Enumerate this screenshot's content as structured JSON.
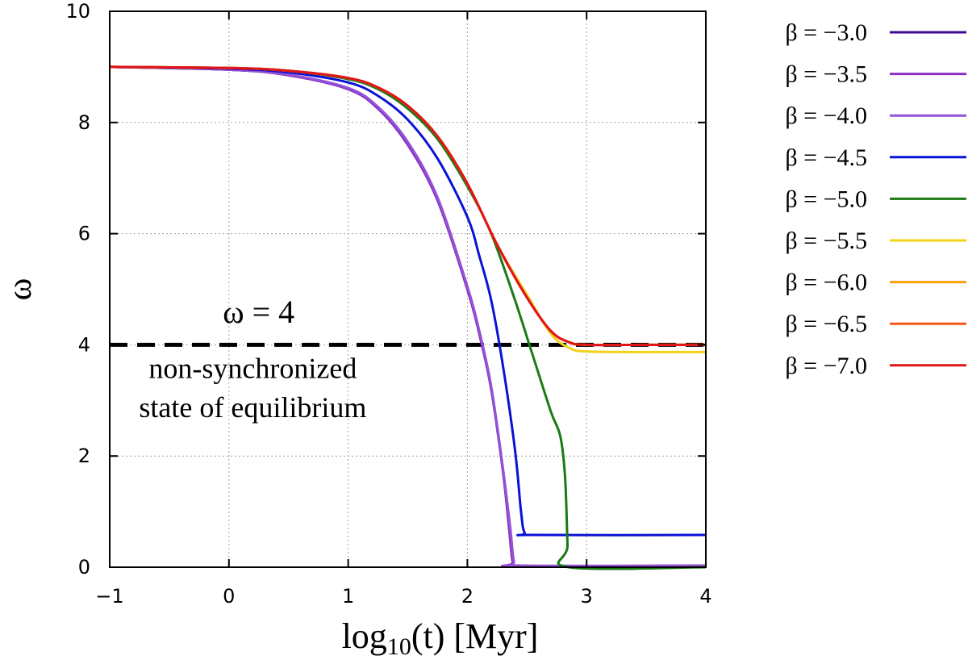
{
  "chart_data": {
    "type": "line",
    "title": "",
    "xlabel_main": "log",
    "xlabel_sub": "10",
    "xlabel_rest": "(t) [Myr]",
    "ylabel": "ω",
    "xlim": [
      -1,
      4
    ],
    "ylim": [
      0,
      10
    ],
    "xticks": [
      "−1",
      "0",
      "1",
      "2",
      "3",
      "4"
    ],
    "xtick_values": [
      -1,
      0,
      1,
      2,
      3,
      4
    ],
    "yticks": [
      "0",
      "2",
      "4",
      "6",
      "8",
      "10"
    ],
    "ytick_values": [
      0,
      2,
      4,
      6,
      8,
      10
    ],
    "grid": true,
    "legend_position": "right, outside plot",
    "reference_line": {
      "y": 4,
      "style": "dashed",
      "color": "#000000"
    },
    "annotations": [
      {
        "text": "ω = 4",
        "x": 0.25,
        "y": 4.4
      },
      {
        "text": "non-synchronized",
        "x": 0.2,
        "y": 3.4
      },
      {
        "text": "state of equilibrium",
        "x": 0.2,
        "y": 2.7
      }
    ],
    "series": [
      {
        "name": "β = −3.0",
        "color": "#3d0a91",
        "points": [
          [
            -1,
            9.0
          ],
          [
            0,
            8.95
          ],
          [
            0.5,
            8.85
          ],
          [
            1,
            8.6
          ],
          [
            1.25,
            8.25
          ],
          [
            1.5,
            7.6
          ],
          [
            1.75,
            6.6
          ],
          [
            2,
            5.0
          ],
          [
            2.1,
            4.2
          ],
          [
            2.2,
            3.2
          ],
          [
            2.3,
            1.7
          ],
          [
            2.35,
            0.7
          ],
          [
            2.38,
            0.1
          ],
          [
            2.42,
            0.02
          ],
          [
            4,
            0.02
          ]
        ]
      },
      {
        "name": "β = −3.5",
        "color": "#8a2fc6",
        "points": [
          [
            -1,
            9.0
          ],
          [
            0,
            8.95
          ],
          [
            0.5,
            8.85
          ],
          [
            1,
            8.6
          ],
          [
            1.25,
            8.25
          ],
          [
            1.5,
            7.6
          ],
          [
            1.75,
            6.6
          ],
          [
            2,
            5.0
          ],
          [
            2.1,
            4.2
          ],
          [
            2.2,
            3.2
          ],
          [
            2.3,
            1.7
          ],
          [
            2.35,
            0.7
          ],
          [
            2.38,
            0.1
          ],
          [
            2.42,
            0.02
          ],
          [
            4,
            0.02
          ]
        ]
      },
      {
        "name": "β = −4.0",
        "color": "#9452d6",
        "points": [
          [
            -1,
            9.0
          ],
          [
            0,
            8.95
          ],
          [
            0.5,
            8.86
          ],
          [
            1,
            8.62
          ],
          [
            1.25,
            8.28
          ],
          [
            1.5,
            7.65
          ],
          [
            1.75,
            6.65
          ],
          [
            2,
            5.05
          ],
          [
            2.1,
            4.25
          ],
          [
            2.2,
            3.25
          ],
          [
            2.3,
            1.75
          ],
          [
            2.36,
            0.7
          ],
          [
            2.39,
            0.1
          ],
          [
            2.43,
            0.03
          ],
          [
            4,
            0.03
          ]
        ]
      },
      {
        "name": "β = −4.5",
        "color": "#0a12d6",
        "points": [
          [
            -1,
            9.0
          ],
          [
            0,
            8.97
          ],
          [
            0.5,
            8.9
          ],
          [
            1,
            8.72
          ],
          [
            1.25,
            8.48
          ],
          [
            1.5,
            8.05
          ],
          [
            1.75,
            7.35
          ],
          [
            2,
            6.3
          ],
          [
            2.1,
            5.6
          ],
          [
            2.2,
            4.8
          ],
          [
            2.3,
            3.6
          ],
          [
            2.4,
            2.1
          ],
          [
            2.45,
            1.0
          ],
          [
            2.48,
            0.62
          ],
          [
            2.55,
            0.58
          ],
          [
            4,
            0.58
          ]
        ]
      },
      {
        "name": "β = −5.0",
        "color": "#1a7a14",
        "points": [
          [
            -1,
            9.0
          ],
          [
            0,
            8.98
          ],
          [
            0.5,
            8.93
          ],
          [
            1,
            8.78
          ],
          [
            1.25,
            8.6
          ],
          [
            1.5,
            8.25
          ],
          [
            1.75,
            7.7
          ],
          [
            2,
            6.85
          ],
          [
            2.2,
            6.0
          ],
          [
            2.4,
            4.8
          ],
          [
            2.55,
            3.8
          ],
          [
            2.7,
            2.8
          ],
          [
            2.78,
            2.35
          ],
          [
            2.82,
            1.6
          ],
          [
            2.84,
            0.4
          ],
          [
            2.85,
            0.0
          ],
          [
            4,
            0.0
          ]
        ]
      },
      {
        "name": "β = −5.5",
        "color": "#f2d21a",
        "points": [
          [
            -1,
            9.0
          ],
          [
            0,
            8.98
          ],
          [
            0.5,
            8.93
          ],
          [
            1,
            8.8
          ],
          [
            1.25,
            8.63
          ],
          [
            1.5,
            8.3
          ],
          [
            1.75,
            7.75
          ],
          [
            2,
            6.9
          ],
          [
            2.25,
            5.8
          ],
          [
            2.5,
            4.9
          ],
          [
            2.7,
            4.2
          ],
          [
            2.85,
            3.95
          ],
          [
            3,
            3.88
          ],
          [
            3.5,
            3.87
          ],
          [
            4,
            3.87
          ]
        ]
      },
      {
        "name": "β = −6.0",
        "color": "#f5a30a",
        "points": [
          [
            -1,
            9.0
          ],
          [
            0,
            8.98
          ],
          [
            0.5,
            8.93
          ],
          [
            1,
            8.8
          ],
          [
            1.25,
            8.63
          ],
          [
            1.5,
            8.3
          ],
          [
            1.75,
            7.75
          ],
          [
            2,
            6.9
          ],
          [
            2.25,
            5.8
          ],
          [
            2.5,
            4.85
          ],
          [
            2.7,
            4.25
          ],
          [
            2.85,
            4.05
          ],
          [
            3,
            4.0
          ],
          [
            3.5,
            4.0
          ],
          [
            4,
            4.0
          ]
        ]
      },
      {
        "name": "β = −6.5",
        "color": "#f25a14",
        "points": [
          [
            -1,
            9.0
          ],
          [
            0,
            8.98
          ],
          [
            0.5,
            8.93
          ],
          [
            1,
            8.8
          ],
          [
            1.25,
            8.63
          ],
          [
            1.5,
            8.3
          ],
          [
            1.75,
            7.75
          ],
          [
            2,
            6.9
          ],
          [
            2.25,
            5.8
          ],
          [
            2.5,
            4.85
          ],
          [
            2.7,
            4.25
          ],
          [
            2.85,
            4.05
          ],
          [
            3,
            4.0
          ],
          [
            3.5,
            4.0
          ],
          [
            4,
            4.0
          ]
        ]
      },
      {
        "name": "β = −7.0",
        "color": "#e0141a",
        "points": [
          [
            -1,
            9.0
          ],
          [
            0,
            8.98
          ],
          [
            0.5,
            8.93
          ],
          [
            1,
            8.8
          ],
          [
            1.25,
            8.63
          ],
          [
            1.5,
            8.3
          ],
          [
            1.75,
            7.75
          ],
          [
            2,
            6.9
          ],
          [
            2.25,
            5.8
          ],
          [
            2.5,
            4.85
          ],
          [
            2.7,
            4.25
          ],
          [
            2.85,
            4.05
          ],
          [
            3,
            4.0
          ],
          [
            3.5,
            4.0
          ],
          [
            4,
            4.0
          ]
        ]
      }
    ]
  }
}
